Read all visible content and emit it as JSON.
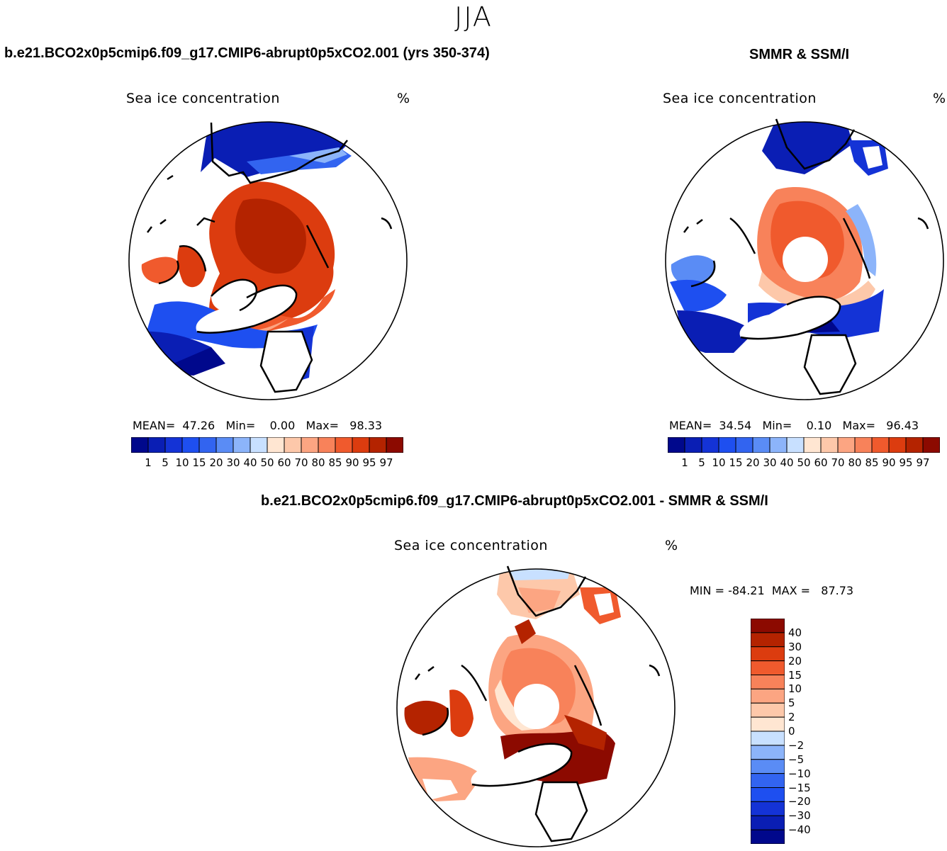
{
  "season": "JJA",
  "panels": {
    "model": {
      "header": "b.e21.BCO2x0p5cmip6.f09_g17.CMIP6-abrupt0p5xCO2.001 (yrs 350-374)",
      "title": "Sea ice concentration",
      "units": "%",
      "stats": {
        "mean_label": "MEAN=",
        "mean": "47.26",
        "min_label": "Min=",
        "min": "0.00",
        "max_label": "Max=",
        "max": "98.33"
      }
    },
    "obs": {
      "header": "SMMR & SSM/I",
      "title": "Sea ice concentration",
      "units": "%",
      "stats": {
        "mean_label": "MEAN=",
        "mean": "34.54",
        "min_label": "Min=",
        "min": "0.10",
        "max_label": "Max=",
        "max": "96.43"
      }
    },
    "diff": {
      "header": "b.e21.BCO2x0p5cmip6.f09_g17.CMIP6-abrupt0p5xCO2.001 - SMMR & SSM/I",
      "title": "Sea ice concentration",
      "units": "%",
      "stats": {
        "min_label": "MIN =",
        "min": "-84.21",
        "max_label": "MAX =",
        "max": "87.73"
      }
    }
  },
  "colorbars": {
    "concentration": {
      "colors": [
        "#00088c",
        "#0a1eb4",
        "#1433d6",
        "#1e4ff0",
        "#3264f0",
        "#5a8cf5",
        "#8cb4fa",
        "#c8e0ff",
        "#ffe6d2",
        "#fdc8aa",
        "#fca582",
        "#f8825a",
        "#f05a2d",
        "#dc3c0f",
        "#b42300",
        "#8c0a00"
      ],
      "ticks": [
        "1",
        "5",
        "10",
        "15",
        "20",
        "30",
        "40",
        "50",
        "60",
        "70",
        "80",
        "85",
        "90",
        "95",
        "97"
      ]
    },
    "difference": {
      "colors": [
        "#8c0a00",
        "#b42300",
        "#dc3c0f",
        "#f05a2d",
        "#f8825a",
        "#fca582",
        "#fdc8aa",
        "#ffe6d2",
        "#c8e0ff",
        "#8cb4fa",
        "#5a8cf5",
        "#3264f0",
        "#1e4ff0",
        "#1433d6",
        "#0a1eb4",
        "#00088c"
      ],
      "ticks": [
        "40",
        "30",
        "20",
        "15",
        "10",
        "5",
        "2",
        "0",
        "−2",
        "−5",
        "−10",
        "−15",
        "−20",
        "−30",
        "−40"
      ]
    }
  }
}
